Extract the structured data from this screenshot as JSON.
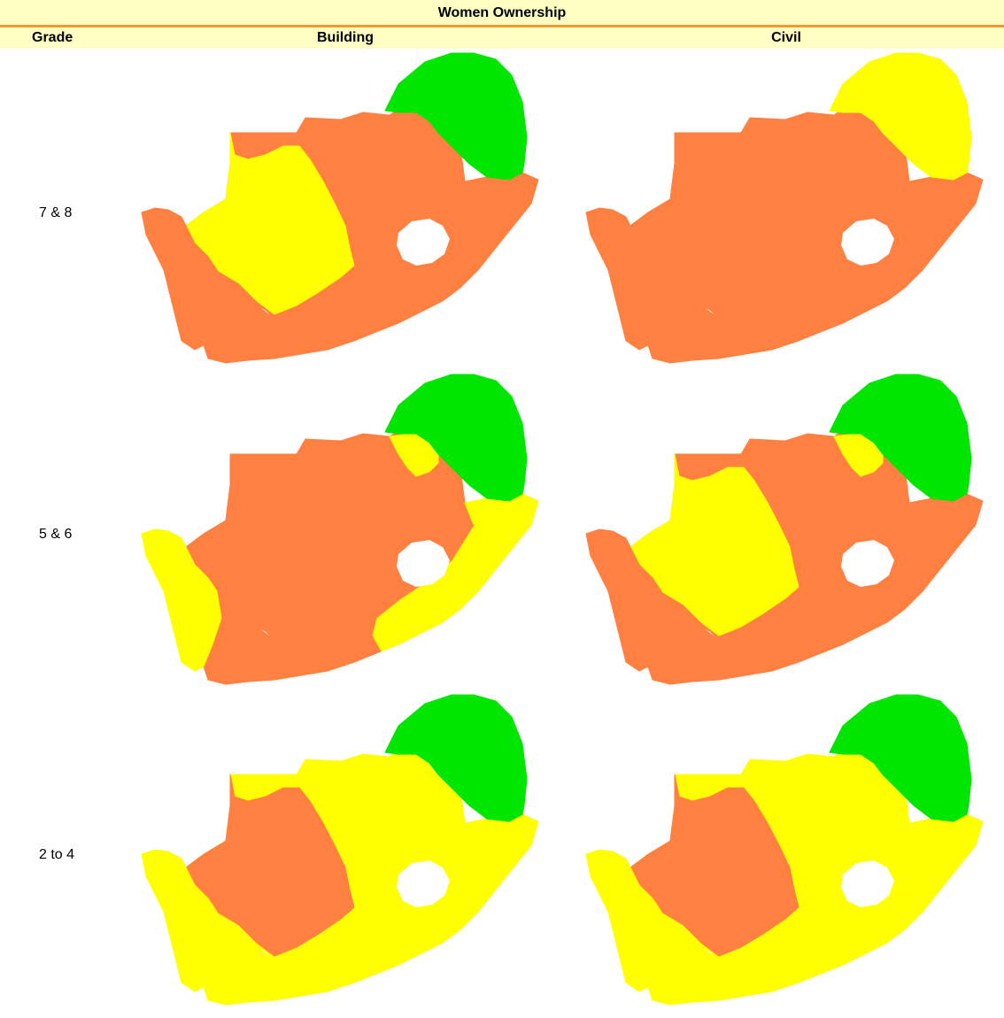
{
  "title": "Women Ownership",
  "headers": {
    "grade": "Grade",
    "building": "Building",
    "civil": "Civil"
  },
  "rows": [
    {
      "grade": "7 & 8",
      "building": {
        "northeast": "green",
        "west": "yellow",
        "southwest": "orange",
        "central": "orange",
        "east": "orange",
        "south": "orange",
        "north_pocket": "orange"
      },
      "civil": {
        "northeast": "yellow",
        "west": "orange",
        "southwest": "orange",
        "central": "orange",
        "east": "orange",
        "south": "orange",
        "north_pocket": "orange"
      }
    },
    {
      "grade": "5 & 6",
      "building": {
        "northeast": "green",
        "west": "orange",
        "southwest": "yellow",
        "central": "orange",
        "east": "yellow",
        "south": "orange",
        "north_pocket": "yellow"
      },
      "civil": {
        "northeast": "green",
        "west": "yellow",
        "southwest": "orange",
        "central": "orange",
        "east": "orange",
        "south": "orange",
        "north_pocket": "yellow"
      }
    },
    {
      "grade": "2 to 4",
      "building": {
        "northeast": "green",
        "west": "orange",
        "southwest": "yellow",
        "central": "yellow",
        "east": "yellow",
        "south": "yellow",
        "north_pocket": "yellow"
      },
      "civil": {
        "northeast": "green",
        "west": "orange",
        "southwest": "yellow",
        "central": "yellow",
        "east": "yellow",
        "south": "yellow",
        "north_pocket": "yellow"
      }
    }
  ],
  "colors": {
    "green": "#00e600",
    "yellow": "#ffff00",
    "orange": "#ff8040",
    "lesotho": "#ffffff"
  }
}
